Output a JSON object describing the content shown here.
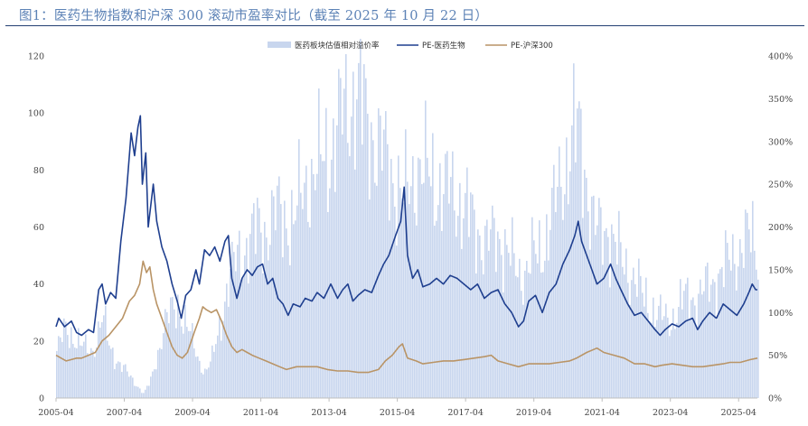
{
  "title": "图1：医药生物指数和沪深 300 滚动市盈率对比（截至 2025 年 10 月 22 日）",
  "chart_data": {
    "type": "line+area",
    "title": "图1：医药生物指数和沪深 300 滚动市盈率对比（截至 2025 年 10 月 22 日）",
    "series": [
      {
        "name": "医药板块估值相对溢价率",
        "axis": "right",
        "kind": "area",
        "color": "#c8d6ee"
      },
      {
        "name": "PE-医药生物",
        "axis": "left",
        "kind": "line",
        "color": "#1f3f8f"
      },
      {
        "name": "PE-沪深300",
        "axis": "left",
        "kind": "line",
        "color": "#b99466"
      }
    ],
    "legend": [
      "医药板块估值相对溢价率",
      "PE-医药生物",
      "PE-沪深300"
    ],
    "legend_position": "top-center",
    "y_left": {
      "min": 0,
      "max": 120,
      "ticks": [
        "0",
        "20",
        "40",
        "60",
        "80",
        "100",
        "120"
      ]
    },
    "y_right": {
      "min": 0,
      "max": 400,
      "ticks": [
        "0%",
        "50%",
        "100%",
        "150%",
        "200%",
        "250%",
        "300%",
        "350%",
        "400%"
      ]
    },
    "x_ticks": [
      "2005-04",
      "2007-04",
      "2009-04",
      "2011-04",
      "2013-04",
      "2015-04",
      "2017-04",
      "2019-04",
      "2021-04",
      "2023-04",
      "2025-04"
    ],
    "x_range": [
      2005.25,
      2025.8
    ],
    "pe_pharma": [
      [
        2005.25,
        25
      ],
      [
        2005.33,
        28
      ],
      [
        2005.5,
        25
      ],
      [
        2005.7,
        27
      ],
      [
        2005.85,
        23
      ],
      [
        2006.0,
        22
      ],
      [
        2006.2,
        24
      ],
      [
        2006.35,
        23
      ],
      [
        2006.5,
        38
      ],
      [
        2006.6,
        40
      ],
      [
        2006.7,
        33
      ],
      [
        2006.85,
        37
      ],
      [
        2007.0,
        35
      ],
      [
        2007.15,
        55
      ],
      [
        2007.3,
        70
      ],
      [
        2007.45,
        93
      ],
      [
        2007.55,
        85
      ],
      [
        2007.65,
        95
      ],
      [
        2007.72,
        99
      ],
      [
        2007.78,
        75
      ],
      [
        2007.88,
        86
      ],
      [
        2007.95,
        60
      ],
      [
        2008.1,
        75
      ],
      [
        2008.2,
        62
      ],
      [
        2008.35,
        53
      ],
      [
        2008.5,
        48
      ],
      [
        2008.65,
        40
      ],
      [
        2008.8,
        34
      ],
      [
        2008.92,
        28
      ],
      [
        2009.05,
        36
      ],
      [
        2009.2,
        38
      ],
      [
        2009.35,
        45
      ],
      [
        2009.45,
        40
      ],
      [
        2009.6,
        52
      ],
      [
        2009.75,
        50
      ],
      [
        2009.9,
        53
      ],
      [
        2010.05,
        48
      ],
      [
        2010.2,
        55
      ],
      [
        2010.3,
        57
      ],
      [
        2010.4,
        42
      ],
      [
        2010.55,
        35
      ],
      [
        2010.7,
        42
      ],
      [
        2010.85,
        45
      ],
      [
        2011.0,
        43
      ],
      [
        2011.15,
        46
      ],
      [
        2011.3,
        47
      ],
      [
        2011.45,
        40
      ],
      [
        2011.6,
        42
      ],
      [
        2011.75,
        35
      ],
      [
        2011.9,
        33
      ],
      [
        2012.05,
        29
      ],
      [
        2012.2,
        33
      ],
      [
        2012.4,
        32
      ],
      [
        2012.55,
        35
      ],
      [
        2012.75,
        34
      ],
      [
        2012.9,
        37
      ],
      [
        2013.1,
        35
      ],
      [
        2013.3,
        40
      ],
      [
        2013.5,
        35
      ],
      [
        2013.65,
        38
      ],
      [
        2013.8,
        40
      ],
      [
        2013.95,
        34
      ],
      [
        2014.1,
        36
      ],
      [
        2014.3,
        38
      ],
      [
        2014.5,
        37
      ],
      [
        2014.7,
        43
      ],
      [
        2014.85,
        47
      ],
      [
        2015.0,
        50
      ],
      [
        2015.2,
        57
      ],
      [
        2015.35,
        62
      ],
      [
        2015.45,
        74
      ],
      [
        2015.55,
        50
      ],
      [
        2015.7,
        42
      ],
      [
        2015.85,
        45
      ],
      [
        2016.0,
        39
      ],
      [
        2016.2,
        40
      ],
      [
        2016.4,
        42
      ],
      [
        2016.6,
        40
      ],
      [
        2016.8,
        43
      ],
      [
        2017.0,
        42
      ],
      [
        2017.2,
        40
      ],
      [
        2017.4,
        38
      ],
      [
        2017.6,
        40
      ],
      [
        2017.8,
        35
      ],
      [
        2018.0,
        37
      ],
      [
        2018.2,
        38
      ],
      [
        2018.4,
        33
      ],
      [
        2018.6,
        30
      ],
      [
        2018.8,
        25
      ],
      [
        2018.95,
        27
      ],
      [
        2019.1,
        34
      ],
      [
        2019.3,
        36
      ],
      [
        2019.5,
        30
      ],
      [
        2019.7,
        37
      ],
      [
        2019.9,
        40
      ],
      [
        2020.1,
        47
      ],
      [
        2020.3,
        52
      ],
      [
        2020.45,
        57
      ],
      [
        2020.55,
        62
      ],
      [
        2020.65,
        55
      ],
      [
        2020.8,
        50
      ],
      [
        2020.95,
        45
      ],
      [
        2021.1,
        40
      ],
      [
        2021.3,
        42
      ],
      [
        2021.5,
        47
      ],
      [
        2021.65,
        42
      ],
      [
        2021.8,
        38
      ],
      [
        2022.0,
        33
      ],
      [
        2022.2,
        29
      ],
      [
        2022.4,
        30
      ],
      [
        2022.6,
        27
      ],
      [
        2022.8,
        24
      ],
      [
        2022.95,
        22
      ],
      [
        2023.1,
        24
      ],
      [
        2023.3,
        26
      ],
      [
        2023.5,
        25
      ],
      [
        2023.7,
        27
      ],
      [
        2023.9,
        28
      ],
      [
        2024.05,
        24
      ],
      [
        2024.2,
        27
      ],
      [
        2024.4,
        30
      ],
      [
        2024.6,
        28
      ],
      [
        2024.8,
        33
      ],
      [
        2025.0,
        31
      ],
      [
        2025.2,
        29
      ],
      [
        2025.4,
        33
      ],
      [
        2025.55,
        37
      ],
      [
        2025.65,
        40
      ],
      [
        2025.75,
        38
      ],
      [
        2025.8,
        38
      ]
    ],
    "pe_hs300": [
      [
        2005.25,
        15
      ],
      [
        2005.4,
        14
      ],
      [
        2005.55,
        13
      ],
      [
        2005.7,
        13.5
      ],
      [
        2005.85,
        14
      ],
      [
        2006.0,
        14
      ],
      [
        2006.2,
        15
      ],
      [
        2006.4,
        16
      ],
      [
        2006.6,
        20
      ],
      [
        2006.8,
        22
      ],
      [
        2007.0,
        25
      ],
      [
        2007.2,
        28
      ],
      [
        2007.4,
        34
      ],
      [
        2007.55,
        36
      ],
      [
        2007.7,
        40
      ],
      [
        2007.8,
        48
      ],
      [
        2007.9,
        44
      ],
      [
        2008.0,
        46
      ],
      [
        2008.1,
        38
      ],
      [
        2008.2,
        33
      ],
      [
        2008.35,
        28
      ],
      [
        2008.5,
        23
      ],
      [
        2008.65,
        18
      ],
      [
        2008.8,
        15
      ],
      [
        2008.95,
        14
      ],
      [
        2009.1,
        16
      ],
      [
        2009.3,
        23
      ],
      [
        2009.45,
        28
      ],
      [
        2009.55,
        32
      ],
      [
        2009.65,
        31
      ],
      [
        2009.8,
        30
      ],
      [
        2009.95,
        31
      ],
      [
        2010.1,
        27
      ],
      [
        2010.25,
        22
      ],
      [
        2010.4,
        18
      ],
      [
        2010.55,
        16
      ],
      [
        2010.7,
        17
      ],
      [
        2010.85,
        16
      ],
      [
        2011.0,
        15
      ],
      [
        2011.2,
        14
      ],
      [
        2011.4,
        13
      ],
      [
        2011.6,
        12
      ],
      [
        2011.8,
        11
      ],
      [
        2012.0,
        10
      ],
      [
        2012.3,
        11
      ],
      [
        2012.6,
        11
      ],
      [
        2012.9,
        11
      ],
      [
        2013.2,
        10
      ],
      [
        2013.5,
        9.5
      ],
      [
        2013.8,
        9.5
      ],
      [
        2014.1,
        9
      ],
      [
        2014.4,
        9
      ],
      [
        2014.7,
        10
      ],
      [
        2014.9,
        13
      ],
      [
        2015.1,
        15
      ],
      [
        2015.3,
        18
      ],
      [
        2015.4,
        19
      ],
      [
        2015.55,
        14
      ],
      [
        2015.8,
        13
      ],
      [
        2016.0,
        12
      ],
      [
        2016.3,
        12.5
      ],
      [
        2016.6,
        13
      ],
      [
        2016.9,
        13
      ],
      [
        2017.2,
        13.5
      ],
      [
        2017.5,
        14
      ],
      [
        2017.8,
        14.5
      ],
      [
        2018.0,
        15
      ],
      [
        2018.2,
        13
      ],
      [
        2018.5,
        12
      ],
      [
        2018.8,
        11
      ],
      [
        2019.1,
        12
      ],
      [
        2019.4,
        12
      ],
      [
        2019.7,
        12
      ],
      [
        2020.0,
        12.5
      ],
      [
        2020.3,
        13
      ],
      [
        2020.5,
        14
      ],
      [
        2020.8,
        16
      ],
      [
        2021.0,
        17
      ],
      [
        2021.1,
        17.5
      ],
      [
        2021.3,
        16
      ],
      [
        2021.6,
        15
      ],
      [
        2021.9,
        14
      ],
      [
        2022.2,
        12
      ],
      [
        2022.5,
        12
      ],
      [
        2022.8,
        11
      ],
      [
        2023.0,
        11.5
      ],
      [
        2023.3,
        12
      ],
      [
        2023.6,
        11.5
      ],
      [
        2023.9,
        11
      ],
      [
        2024.2,
        11
      ],
      [
        2024.5,
        11.5
      ],
      [
        2024.8,
        12
      ],
      [
        2025.0,
        12.5
      ],
      [
        2025.3,
        12.5
      ],
      [
        2025.6,
        13.5
      ],
      [
        2025.8,
        14
      ]
    ],
    "premium_pct": [
      [
        2005.25,
        55
      ],
      [
        2005.5,
        80
      ],
      [
        2005.8,
        70
      ],
      [
        2006.0,
        60
      ],
      [
        2006.3,
        55
      ],
      [
        2006.6,
        95
      ],
      [
        2006.8,
        60
      ],
      [
        2007.0,
        45
      ],
      [
        2007.2,
        35
      ],
      [
        2007.4,
        25
      ],
      [
        2007.6,
        15
      ],
      [
        2007.8,
        5
      ],
      [
        2008.0,
        20
      ],
      [
        2008.2,
        50
      ],
      [
        2008.4,
        85
      ],
      [
        2008.6,
        100
      ],
      [
        2008.8,
        110
      ],
      [
        2009.0,
        90
      ],
      [
        2009.2,
        70
      ],
      [
        2009.4,
        45
      ],
      [
        2009.6,
        30
      ],
      [
        2009.8,
        45
      ],
      [
        2010.0,
        80
      ],
      [
        2010.2,
        120
      ],
      [
        2010.4,
        150
      ],
      [
        2010.6,
        170
      ],
      [
        2010.8,
        175
      ],
      [
        2011.0,
        190
      ],
      [
        2011.2,
        200
      ],
      [
        2011.4,
        195
      ],
      [
        2011.6,
        210
      ],
      [
        2011.8,
        220
      ],
      [
        2012.0,
        210
      ],
      [
        2012.2,
        200
      ],
      [
        2012.4,
        240
      ],
      [
        2012.6,
        260
      ],
      [
        2012.8,
        255
      ],
      [
        2013.0,
        280
      ],
      [
        2013.2,
        290
      ],
      [
        2013.4,
        300
      ],
      [
        2013.6,
        330
      ],
      [
        2013.8,
        350
      ],
      [
        2014.0,
        355
      ],
      [
        2014.2,
        340
      ],
      [
        2014.4,
        320
      ],
      [
        2014.6,
        300
      ],
      [
        2014.8,
        285
      ],
      [
        2015.0,
        270
      ],
      [
        2015.2,
        250
      ],
      [
        2015.4,
        230
      ],
      [
        2015.6,
        250
      ],
      [
        2015.8,
        270
      ],
      [
        2016.0,
        265
      ],
      [
        2016.2,
        260
      ],
      [
        2016.4,
        250
      ],
      [
        2016.6,
        240
      ],
      [
        2016.8,
        245
      ],
      [
        2017.0,
        235
      ],
      [
        2017.2,
        220
      ],
      [
        2017.4,
        210
      ],
      [
        2017.6,
        195
      ],
      [
        2017.8,
        180
      ],
      [
        2018.0,
        185
      ],
      [
        2018.2,
        190
      ],
      [
        2018.4,
        175
      ],
      [
        2018.6,
        160
      ],
      [
        2018.8,
        145
      ],
      [
        2019.0,
        150
      ],
      [
        2019.2,
        165
      ],
      [
        2019.4,
        170
      ],
      [
        2019.6,
        190
      ],
      [
        2019.8,
        220
      ],
      [
        2020.0,
        250
      ],
      [
        2020.2,
        280
      ],
      [
        2020.4,
        310
      ],
      [
        2020.6,
        300
      ],
      [
        2020.8,
        250
      ],
      [
        2021.0,
        200
      ],
      [
        2021.2,
        190
      ],
      [
        2021.4,
        200
      ],
      [
        2021.6,
        180
      ],
      [
        2021.8,
        160
      ],
      [
        2022.0,
        150
      ],
      [
        2022.2,
        140
      ],
      [
        2022.4,
        120
      ],
      [
        2022.6,
        110
      ],
      [
        2022.8,
        100
      ],
      [
        2023.0,
        95
      ],
      [
        2023.2,
        90
      ],
      [
        2023.4,
        100
      ],
      [
        2023.6,
        115
      ],
      [
        2023.8,
        120
      ],
      [
        2024.0,
        115
      ],
      [
        2024.2,
        125
      ],
      [
        2024.4,
        135
      ],
      [
        2024.6,
        140
      ],
      [
        2024.8,
        150
      ],
      [
        2025.0,
        165
      ],
      [
        2025.2,
        170
      ],
      [
        2025.4,
        180
      ],
      [
        2025.6,
        190
      ],
      [
        2025.8,
        175
      ]
    ]
  }
}
